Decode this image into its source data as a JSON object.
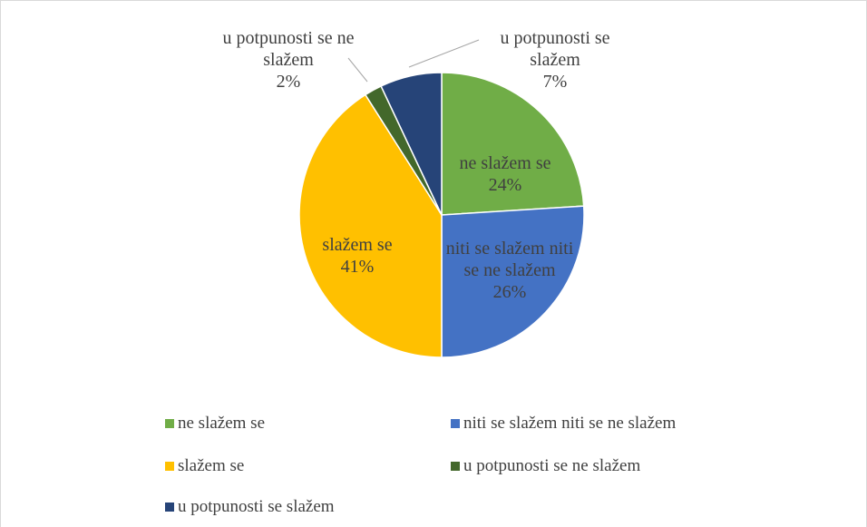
{
  "chart_data": {
    "type": "pie",
    "categories": [
      "ne slažem se",
      "niti se slažem niti se ne slažem",
      "slažem se",
      "u potpunosti se ne slažem",
      "u potpunosti se slažem"
    ],
    "values": [
      24,
      26,
      41,
      2,
      7
    ],
    "value_labels": [
      "24%",
      "26%",
      "41%",
      "2%",
      "7%"
    ],
    "colors": [
      "#70ad47",
      "#4472c4",
      "#ffc000",
      "#43682b",
      "#264478"
    ],
    "legend": "bottom"
  }
}
